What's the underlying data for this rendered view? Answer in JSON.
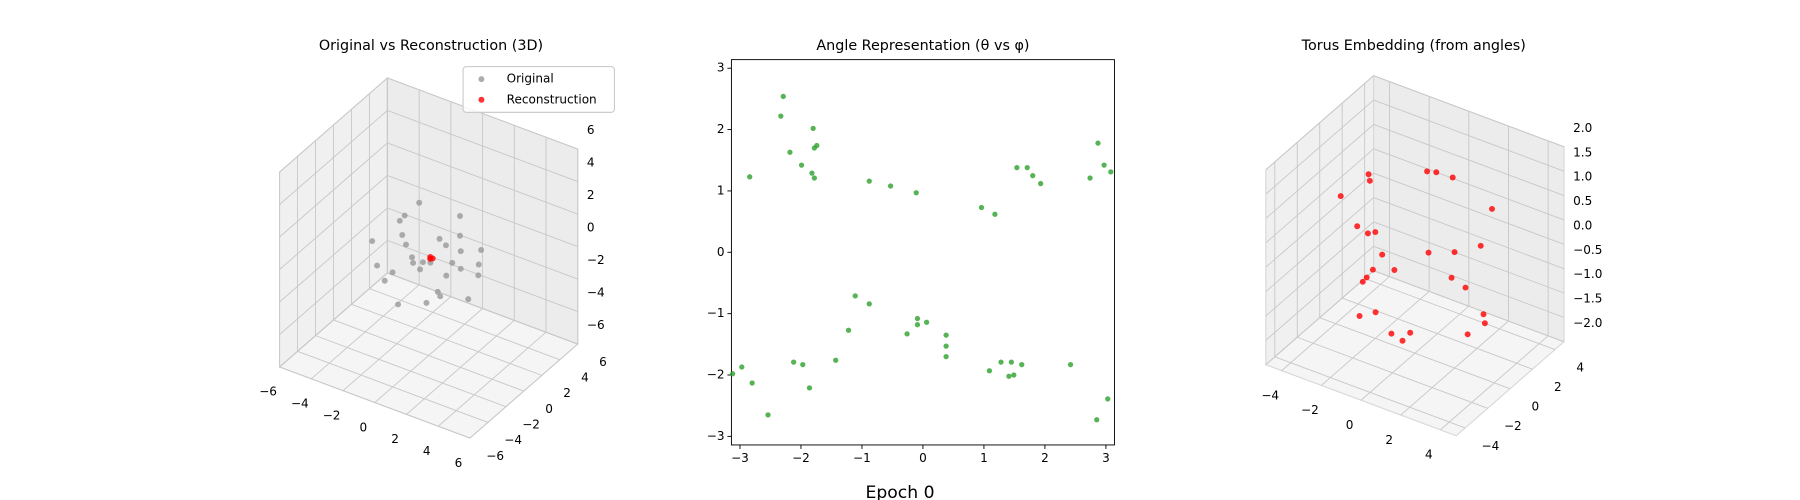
{
  "figure_title": "Epoch 0",
  "chart_data": [
    {
      "type": "scatter3d",
      "title": "Original vs Reconstruction (3D)",
      "legend": "upper right",
      "xlim": [
        -6,
        6
      ],
      "ylim": [
        -6,
        6
      ],
      "zlim": [
        -6,
        6
      ],
      "xticks": [
        {
          "value": -6,
          "label": "−6"
        },
        {
          "value": -4,
          "label": "−4"
        },
        {
          "value": -2,
          "label": "−2"
        },
        0,
        2,
        4,
        6
      ],
      "yticks": [
        {
          "value": -6,
          "label": "−6"
        },
        {
          "value": -4,
          "label": "−4"
        },
        {
          "value": -2,
          "label": "−2"
        },
        0,
        2,
        4,
        6
      ],
      "zticks": [
        {
          "value": -6,
          "label": "−6"
        },
        {
          "value": -4,
          "label": "−4"
        },
        {
          "value": -2,
          "label": "−2"
        },
        0,
        2,
        4,
        6
      ],
      "series": [
        {
          "name": "Original",
          "color": "#999999",
          "x": [
            -2.5,
            -2.8,
            -1.9,
            -1.2,
            0.5,
            1.3,
            2.1,
            2.7,
            -0.4,
            0.9,
            -1.6,
            1.8,
            -2.2,
            0.2,
            2.4,
            -0.9,
            1.1,
            -1.4,
            0.6,
            2.9,
            -2.0,
            -0.2,
            1.6,
            -0.7,
            0.3,
            2.2,
            -2.6,
            1.4,
            -1.1,
            0.8
          ],
          "y": [
            1.2,
            -0.8,
            2.3,
            -1.9,
            2.6,
            -2.1,
            0.7,
            -1.2,
            -2.7,
            1.9,
            0.3,
            2.4,
            -2.4,
            -0.6,
            1.6,
            2.8,
            -2.9,
            -0.2,
            0.9,
            0.4,
            1.8,
            -1.5,
            -0.9,
            0.6,
            2.1,
            -2.6,
            -0.3,
            1.1,
            -1.0,
            -0.4
          ],
          "z": [
            0.8,
            -1.1,
            1.6,
            -0.4,
            0.3,
            1.2,
            -2.1,
            0.9,
            -1.7,
            2.0,
            0.1,
            -0.9,
            1.4,
            -2.4,
            0.6,
            -0.5,
            1.1,
            2.2,
            -1.3,
            -0.2,
            -1.9,
            0.7,
            1.8,
            -0.8,
            -1.2,
            -0.3,
            -2.2,
            0.4,
            1.5,
            -1.6
          ]
        },
        {
          "name": "Reconstruction",
          "color": "#ff0000",
          "x": [
            0.1,
            0.2,
            0.15
          ],
          "y": [
            0.0,
            0.1,
            -0.1
          ],
          "z": [
            0.1,
            0.0,
            0.05
          ]
        }
      ]
    },
    {
      "type": "scatter",
      "title": "Angle Representation (θ vs φ)",
      "xlim": [
        -3.14,
        3.14
      ],
      "ylim": [
        -3.14,
        3.14
      ],
      "xticks": [
        {
          "value": -3,
          "label": "−3"
        },
        {
          "value": -2,
          "label": "−2"
        },
        {
          "value": -1,
          "label": "−1"
        },
        0,
        1,
        2,
        3
      ],
      "yticks": [
        {
          "value": -3,
          "label": "−3"
        },
        {
          "value": -2,
          "label": "−2"
        },
        {
          "value": -1,
          "label": "−1"
        },
        0,
        1,
        2,
        3
      ],
      "series": [
        {
          "color": "#2ca02c",
          "x": [
            -3.12,
            -2.97,
            -2.84,
            -2.8,
            -2.54,
            -2.33,
            -2.29,
            -2.18,
            -2.12,
            -1.99,
            -1.97,
            -1.86,
            -1.82,
            -1.8,
            -1.78,
            -1.74,
            -1.78,
            -1.43,
            -1.22,
            -1.11,
            -0.88,
            -0.88,
            -0.53,
            -0.26,
            -0.11,
            -0.09,
            -0.09,
            0.06,
            0.38,
            0.38,
            0.38,
            0.96,
            1.18,
            1.09,
            1.28,
            1.41,
            1.45,
            1.49,
            1.54,
            1.62,
            1.71,
            1.8,
            1.93,
            2.42,
            2.74,
            2.87,
            2.85,
            2.97,
            3.03,
            3.08
          ],
          "y": [
            -1.98,
            -1.87,
            1.23,
            -2.13,
            -2.65,
            2.22,
            2.54,
            1.63,
            -1.79,
            1.42,
            -1.83,
            -2.21,
            1.29,
            2.02,
            1.7,
            1.74,
            1.21,
            -1.76,
            -1.27,
            -0.71,
            -0.84,
            1.16,
            1.08,
            -1.33,
            0.97,
            -1.08,
            -1.18,
            -1.14,
            -1.35,
            -1.53,
            -1.7,
            0.73,
            0.62,
            -1.93,
            -1.79,
            -2.02,
            -1.79,
            -2.0,
            1.38,
            -1.83,
            1.38,
            1.25,
            1.12,
            -1.83,
            1.21,
            1.78,
            -2.73,
            1.42,
            -2.39,
            1.31
          ]
        }
      ]
    },
    {
      "type": "scatter3d",
      "title": "Torus Embedding (from angles)",
      "xlim": [
        -4.8,
        4.8
      ],
      "ylim": [
        -4.8,
        4.8
      ],
      "zlim": [
        -2,
        2
      ],
      "xticks": [
        {
          "value": -4,
          "label": "−4"
        },
        {
          "value": -2,
          "label": "−2"
        },
        0,
        2,
        4
      ],
      "yticks": [
        {
          "value": -4,
          "label": "−4"
        },
        {
          "value": -2,
          "label": "−2"
        },
        0,
        2,
        4
      ],
      "zticks": [
        {
          "value": -2,
          "label": "−2.0"
        },
        {
          "value": -1.5,
          "label": "−1.5"
        },
        {
          "value": -1,
          "label": "−1.0"
        },
        {
          "value": -0.5,
          "label": "−0.5"
        },
        {
          "value": 0,
          "label": "0.0"
        },
        {
          "value": 0.5,
          "label": "0.5"
        },
        {
          "value": 1,
          "label": "1.0"
        },
        {
          "value": 1.5,
          "label": "1.5"
        },
        {
          "value": 2,
          "label": "2.0"
        }
      ],
      "series": [
        {
          "color": "#ff0000",
          "x": [
            -2.6,
            -3.18,
            -1.75,
            -1.44,
            -1.45,
            -1.28,
            -0.68,
            -0.58,
            0.39,
            1.67,
            2.17,
            2.99,
            3.13,
            3.54,
            3.41,
            2.82,
            2.15,
            1.22,
            0.41,
            0.1,
            -1.21,
            -2.06,
            -3.08,
            -2.69,
            -1.99,
            -2.26,
            1.13,
            -0.75
          ],
          "y": [
            -0.05,
            -0.99,
            -1.2,
            -1.64,
            -2.37,
            -2.88,
            -2.3,
            -2.5,
            -2.78,
            -3.37,
            -2.62,
            -1.75,
            -0.83,
            -0.39,
            0.21,
            1.13,
            3.07,
            2.35,
            2.54,
            3.19,
            3.22,
            1.81,
            1.31,
            0.74,
            0.6,
            0.25,
            -3.1,
            3.23
          ],
          "z": [
            -0.92,
            0.94,
            -0.47,
            0.57,
            -0.98,
            0.99,
            -0.8,
            0.9,
            -0.98,
            -0.65,
            0.92,
            0.88,
            -0.97,
            0.82,
            -0.91,
            -1.0,
            0.67,
            -0.94,
            -0.9,
            0.98,
            0.9,
            -0.97,
            0.94,
            0.98,
            -0.4,
            -0.68,
            -0.95,
            0.95
          ]
        }
      ]
    }
  ]
}
